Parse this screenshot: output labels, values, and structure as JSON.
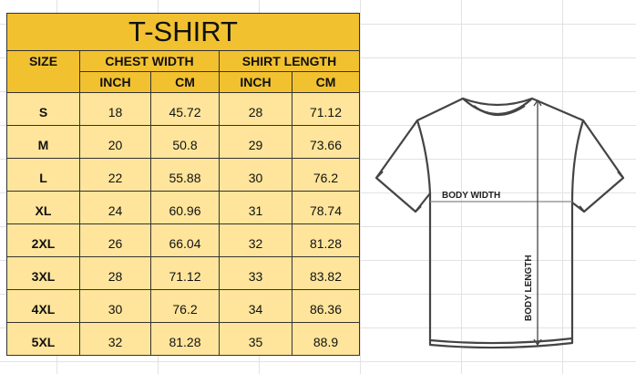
{
  "title": "T-SHIRT",
  "headers": {
    "size": "SIZE",
    "chest": "CHEST WIDTH",
    "length": "SHIRT LENGTH"
  },
  "units": [
    "INCH",
    "CM",
    "INCH",
    "CM"
  ],
  "rows": [
    [
      "S",
      "18",
      "45.72",
      "28",
      "71.12"
    ],
    [
      "M",
      "20",
      "50.8",
      "29",
      "73.66"
    ],
    [
      "L",
      "22",
      "55.88",
      "30",
      "76.2"
    ],
    [
      "XL",
      "24",
      "60.96",
      "31",
      "78.74"
    ],
    [
      "2XL",
      "26",
      "66.04",
      "32",
      "81.28"
    ],
    [
      "3XL",
      "28",
      "71.12",
      "33",
      "83.82"
    ],
    [
      "4XL",
      "30",
      "76.2",
      "34",
      "86.36"
    ],
    [
      "5XL",
      "32",
      "81.28",
      "35",
      "88.9"
    ]
  ],
  "diagram": {
    "body_width": "BODY WIDTH",
    "body_length": "BODY LENGTH"
  },
  "colors": {
    "header": "#f2c130",
    "body": "#ffe59b"
  }
}
